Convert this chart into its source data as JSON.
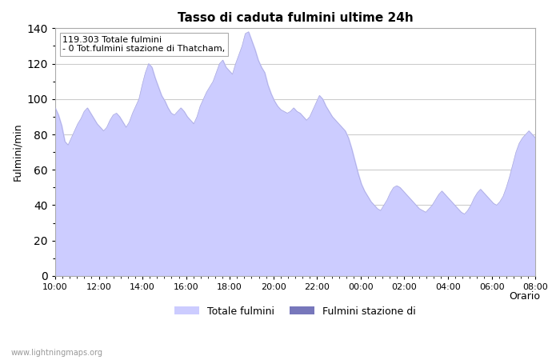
{
  "title": "Tasso di caduta fulmini ultime 24h",
  "xlabel": "Orario",
  "ylabel": "Fulmini/min",
  "annotation": "119.303 Totale fulmini\n- 0 Tot.fulmini stazione di Thatcham,",
  "legend_labels": [
    "Totale fulmini",
    "Fulmini stazione di"
  ],
  "fill_color_total": "#ccccff",
  "fill_color_station": "#7777bb",
  "ylim": [
    0,
    140
  ],
  "yticks": [
    0,
    20,
    40,
    60,
    80,
    100,
    120,
    140
  ],
  "xtick_labels": [
    "10:00",
    "12:00",
    "14:00",
    "16:00",
    "18:00",
    "20:00",
    "22:00",
    "00:00",
    "02:00",
    "04:00",
    "06:00",
    "08:00"
  ],
  "watermark": "www.lightningmaps.org",
  "y_values": [
    95,
    91,
    85,
    76,
    74,
    78,
    82,
    86,
    89,
    93,
    95,
    92,
    89,
    86,
    84,
    82,
    84,
    88,
    91,
    92,
    90,
    87,
    84,
    87,
    92,
    96,
    100,
    108,
    115,
    120,
    118,
    112,
    107,
    102,
    99,
    95,
    92,
    91,
    93,
    95,
    93,
    90,
    88,
    86,
    90,
    96,
    100,
    104,
    107,
    110,
    115,
    120,
    122,
    118,
    116,
    114,
    120,
    125,
    130,
    137,
    138,
    133,
    128,
    122,
    118,
    115,
    108,
    103,
    99,
    96,
    94,
    93,
    92,
    93,
    95,
    93,
    92,
    90,
    88,
    90,
    94,
    98,
    102,
    100,
    96,
    93,
    90,
    88,
    86,
    84,
    82,
    78,
    72,
    65,
    58,
    52,
    48,
    45,
    42,
    40,
    38,
    37,
    40,
    43,
    47,
    50,
    51,
    50,
    48,
    46,
    44,
    42,
    40,
    38,
    37,
    36,
    38,
    40,
    43,
    46,
    48,
    46,
    44,
    42,
    40,
    38,
    36,
    35,
    37,
    40,
    44,
    47,
    49,
    47,
    45,
    43,
    41,
    40,
    42,
    45,
    50,
    56,
    63,
    70,
    75,
    78,
    80,
    82,
    80,
    78
  ]
}
